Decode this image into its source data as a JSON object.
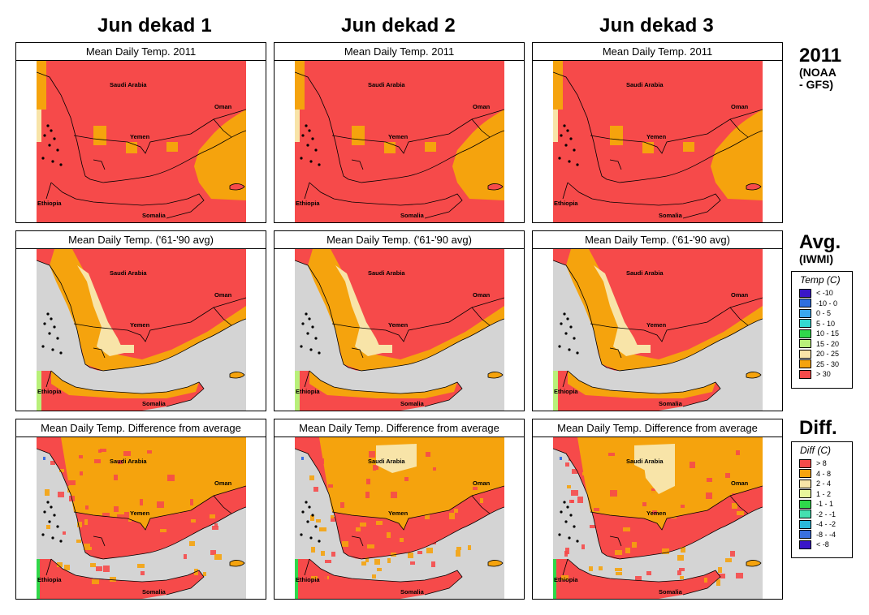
{
  "column_headers": [
    "Jun dekad 1",
    "Jun dekad 2",
    "Jun dekad 3"
  ],
  "rows": [
    {
      "label_big": "2011",
      "label_small": "(NOAA - GFS)",
      "panel_title": "Mean Daily Temp. 2011",
      "map_type": "current"
    },
    {
      "label_big": "Avg.",
      "label_small": "(IWMI)",
      "panel_title": "Mean Daily Temp. ('61-'90 avg)",
      "map_type": "average"
    },
    {
      "label_big": "Diff.",
      "label_small": "",
      "panel_title": "Mean Daily Temp. Difference from average",
      "map_type": "difference"
    }
  ],
  "map_labels": [
    "Saudi Arabia",
    "Oman",
    "Yemen",
    "Ethiopia",
    "Somalia"
  ],
  "legends": {
    "temp": {
      "title": "Temp (C)",
      "items": [
        {
          "label": "< -10",
          "color": "#3a16c8"
        },
        {
          "label": "-10 - 0",
          "color": "#2f6fe0"
        },
        {
          "label": "0 - 5",
          "color": "#3aa7ee"
        },
        {
          "label": "5 - 10",
          "color": "#33d8d0"
        },
        {
          "label": "10 - 15",
          "color": "#2fd84a"
        },
        {
          "label": "15 - 20",
          "color": "#b8f07a"
        },
        {
          "label": "20 - 25",
          "color": "#f8e4a8"
        },
        {
          "label": "25 - 30",
          "color": "#f5a30d"
        },
        {
          "label": "> 30",
          "color": "#f64a4a"
        }
      ]
    },
    "diff": {
      "title": "Diff (C)",
      "items": [
        {
          "label": "> 8",
          "color": "#f64a4a"
        },
        {
          "label": "4 - 8",
          "color": "#f5a30d"
        },
        {
          "label": "2 - 4",
          "color": "#f8e4a8"
        },
        {
          "label": "1 - 2",
          "color": "#e8f59b"
        },
        {
          "label": "-1 - 1",
          "color": "#2fd84a"
        },
        {
          "label": "-2 - -1",
          "color": "#44e0b0"
        },
        {
          "label": "-4 - -2",
          "color": "#2bb8d8"
        },
        {
          "label": "-8 - -4",
          "color": "#3a6fe0"
        },
        {
          "label": "< -8",
          "color": "#3a16c8"
        }
      ]
    }
  },
  "colors": {
    "hot": "#f64a4a",
    "warm": "#f5a30d",
    "mild": "#f8e4a8",
    "sea": "#d4d4d4",
    "border": "#000000"
  }
}
